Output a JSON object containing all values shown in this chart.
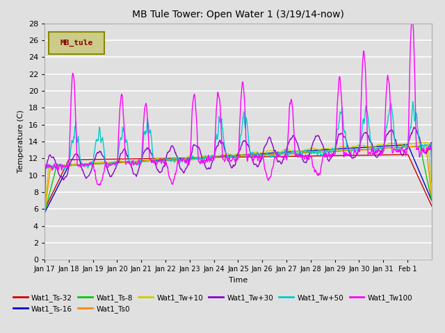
{
  "title": "MB Tule Tower: Open Water 1 (3/19/14-now)",
  "ylabel": "Temperature (C)",
  "xlabel": "Time",
  "ylim": [
    0,
    28
  ],
  "yticks": [
    0,
    2,
    4,
    6,
    8,
    10,
    12,
    14,
    16,
    18,
    20,
    22,
    24,
    26,
    28
  ],
  "bg_color": "#e0e0e0",
  "grid_color": "white",
  "x_tick_labels": [
    "Jan 17",
    "Jan 18",
    "Jan 19",
    "Jan 20",
    "Jan 21",
    "Jan 22",
    "Jan 23",
    "Jan 24",
    "Jan 25",
    "Jan 26",
    "Jan 27",
    "Jan 28",
    "Jan 29",
    "Jan 30",
    "Jan 31",
    "Feb 1"
  ],
  "n_days": 16,
  "pts_per_day": 48,
  "series_labels": [
    "Wat1_Ts-32",
    "Wat1_Ts-16",
    "Wat1_Ts-8",
    "Wat1_Ts0",
    "Wat1_Tw+10",
    "Wat1_Tw+30",
    "Wat1_Tw+50",
    "Wat1_Tw100"
  ],
  "series_colors": [
    "#cc0000",
    "#0000cc",
    "#00cc00",
    "#ff8800",
    "#cccc00",
    "#8800cc",
    "#00cccc",
    "#ff00ff"
  ],
  "legend_label": "MB_tule",
  "legend_bg": "#cccc88",
  "legend_border": "#888800",
  "legend_text_color": "#880000"
}
